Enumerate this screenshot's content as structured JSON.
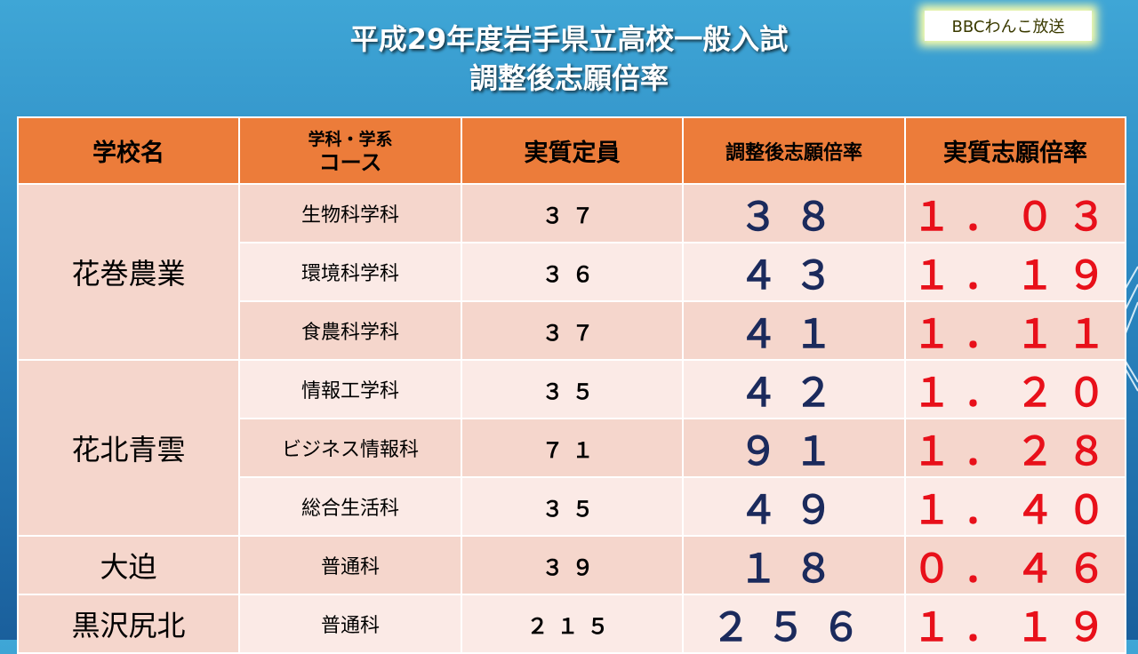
{
  "logo": "BBCわんこ放送",
  "title": {
    "line1": "平成29年度岩手県立高校一般入試",
    "line2": "調整後志願倍率"
  },
  "table": {
    "headers": {
      "school": "学校名",
      "course_line1": "学科・学系",
      "course_line2": "コース",
      "capacity": "実質定員",
      "applicants": "調整後志願倍率",
      "ratio": "実質志願倍率"
    },
    "groups": [
      {
        "school": "花巻農業",
        "rows": [
          {
            "course": "生物科学科",
            "capacity": "３７",
            "applicants": "３８",
            "ratio": "１．０３"
          },
          {
            "course": "環境科学科",
            "capacity": "３６",
            "applicants": "４３",
            "ratio": "１．１９"
          },
          {
            "course": "食農科学科",
            "capacity": "３７",
            "applicants": "４１",
            "ratio": "１．１１"
          }
        ]
      },
      {
        "school": "花北青雲",
        "rows": [
          {
            "course": "情報工学科",
            "capacity": "３５",
            "applicants": "４２",
            "ratio": "１．２０"
          },
          {
            "course": "ビジネス情報科",
            "capacity": "７１",
            "applicants": "９１",
            "ratio": "１．２８"
          },
          {
            "course": "総合生活科",
            "capacity": "３５",
            "applicants": "４９",
            "ratio": "１．４０"
          }
        ]
      },
      {
        "school": "大迫",
        "rows": [
          {
            "course": "普通科",
            "capacity": "３９",
            "applicants": "１８",
            "ratio": "０．４６"
          }
        ]
      },
      {
        "school": "黒沢尻北",
        "rows": [
          {
            "course": "普通科",
            "capacity": "２１５",
            "applicants": "２５６",
            "ratio": "１．１９"
          }
        ]
      }
    ]
  }
}
